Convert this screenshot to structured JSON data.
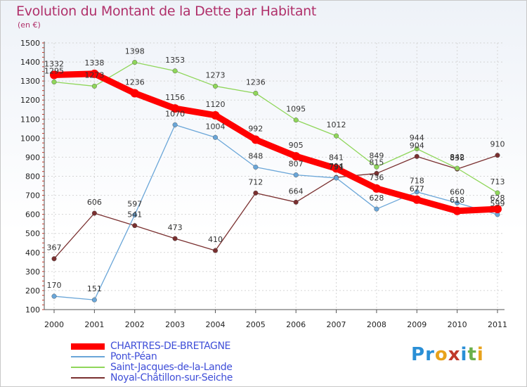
{
  "title": "Evolution du Montant de la Dette par Habitant",
  "unit": "(en €)",
  "logo": {
    "text": "Proxiti",
    "letters": [
      "P",
      "r",
      "o",
      "x",
      "i",
      "t",
      "i"
    ],
    "colors": [
      "#2a8fd6",
      "#2a8fd6",
      "#e8a21c",
      "#c0392b",
      "#2a8fd6",
      "#6ab04c",
      "#e8a21c"
    ]
  },
  "chart_data": {
    "type": "line",
    "title": "Evolution du Montant de la Dette par Habitant",
    "ylabel": "(en €)",
    "xlabel": "",
    "x": [
      "2000",
      "2001",
      "2002",
      "2003",
      "2004",
      "2005",
      "2006",
      "2007",
      "2008",
      "2009",
      "2010",
      "2011"
    ],
    "ylim": [
      100,
      1500
    ],
    "yticks": [
      100,
      200,
      300,
      400,
      500,
      600,
      700,
      800,
      900,
      1000,
      1100,
      1200,
      1300,
      1400,
      1500
    ],
    "grid": true,
    "legend_position": "bottom-left",
    "series": [
      {
        "name": "CHARTRES-DE-BRETAGNE",
        "color": "#ff0000",
        "width": 9,
        "values": [
          1332,
          1338,
          1236,
          1156,
          1120,
          992,
          905,
          841,
          736,
          677,
          618,
          628
        ],
        "labels": [
          "1332",
          "1338",
          "1236",
          "1156",
          "1120",
          "992",
          "905",
          "841",
          "736",
          "677",
          "618",
          "628"
        ]
      },
      {
        "name": "Pont-Péan",
        "color": "#6aa6d8",
        "width": 1.3,
        "values": [
          170,
          151,
          597,
          1070,
          1004,
          848,
          807,
          791,
          628,
          718,
          660,
          599
        ],
        "labels": [
          "170",
          "151",
          "597",
          "1070",
          "1004",
          "848",
          "807",
          "791",
          "628",
          "718",
          "660",
          "599"
        ]
      },
      {
        "name": "Saint-Jacques-de-la-Lande",
        "color": "#8fd65a",
        "width": 1.3,
        "values": [
          1295,
          1273,
          1398,
          1353,
          1273,
          1236,
          1095,
          1012,
          849,
          944,
          842,
          713
        ],
        "labels": [
          "1295",
          "1273",
          "1398",
          "1353",
          "1273",
          "1236",
          "1095",
          "1012",
          "849",
          "944",
          "842",
          "713"
        ]
      },
      {
        "name": "Noyal-Châtillon-sur-Seiche",
        "color": "#7a3030",
        "width": 1.3,
        "values": [
          367,
          606,
          541,
          473,
          410,
          712,
          664,
          794,
          815,
          904,
          838,
          910
        ],
        "labels": [
          "367",
          "606",
          "541",
          "473",
          "410",
          "712",
          "664",
          "794",
          "815",
          "904",
          "838",
          "910"
        ]
      }
    ]
  }
}
